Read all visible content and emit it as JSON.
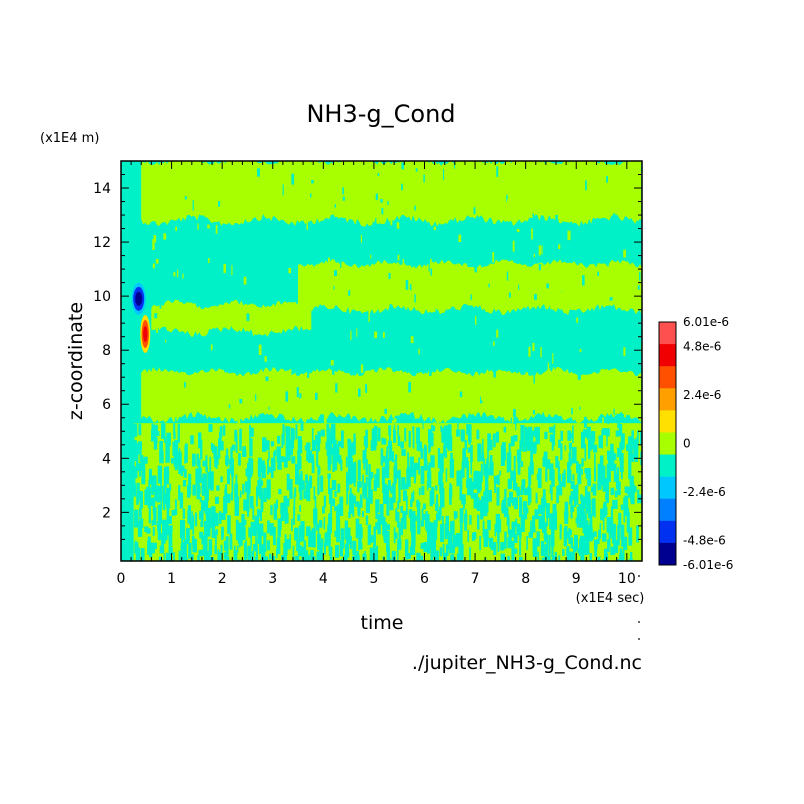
{
  "chart_data": {
    "type": "heatmap",
    "title": "NH3-g_Cond",
    "xlabel": "time",
    "ylabel": "z-coordinate",
    "x_unit": "(x1E4 sec)",
    "y_unit": "(x1E4 m)",
    "source_file": "./jupiter_NH3-g_Cond.nc",
    "xlim": [
      0,
      10.3
    ],
    "ylim": [
      0.2,
      15
    ],
    "x_ticks": [
      "0",
      "1",
      "2",
      "3",
      "4",
      "5",
      "6",
      "7",
      "8",
      "9",
      "10"
    ],
    "y_ticks": [
      "2",
      "4",
      "6",
      "8",
      "10",
      "12",
      "14"
    ],
    "colorbar": {
      "min": -6.01e-06,
      "max": 6.01e-06,
      "labels": [
        "6.01e-6",
        "4.8e-6",
        "2.4e-6",
        "0",
        "-2.4e-6",
        "-4.8e-6",
        "-6.01e-6"
      ],
      "label_values": [
        6.01e-06,
        4.8e-06,
        2.4e-06,
        0,
        -2.4e-06,
        -4.8e-06,
        -6.01e-06
      ],
      "colors_low_to_high": [
        "#000090",
        "#0030f0",
        "#0080ff",
        "#00c8ff",
        "#00f0c8",
        "#a8ff00",
        "#ffe000",
        "#ffa000",
        "#ff5000",
        "#f00000",
        "#ff5050"
      ]
    },
    "field": {
      "background_color": "#00f0c8",
      "bands_near_zero_positive": [
        {
          "z_from": 12.8,
          "z_to": 15,
          "x_from": 0.4,
          "x_to": 10.3
        },
        {
          "z_from": 9.5,
          "z_to": 11.2,
          "x_from": 3.5,
          "x_to": 10.3
        },
        {
          "z_from": 8.7,
          "z_to": 9.7,
          "x_from": 0.6,
          "x_to": 3.8
        },
        {
          "z_from": 5.5,
          "z_to": 7.2,
          "x_from": 0.4,
          "x_to": 10.3
        }
      ],
      "noisy_region_z_max": 5.3,
      "features": [
        {
          "kind": "negative_min",
          "x": 0.35,
          "z": 9.9,
          "value": -6.01e-06
        },
        {
          "kind": "positive_max",
          "x": 0.48,
          "z": 8.6,
          "value": 6.01e-06
        }
      ]
    }
  }
}
